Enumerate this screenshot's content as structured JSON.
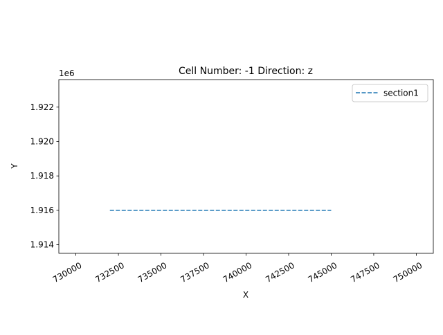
{
  "chart_data": {
    "type": "line",
    "title": "Cell Number: -1 Direction: z",
    "xlabel": "X",
    "ylabel": "Y",
    "y_offset_label": "1e6",
    "xlim": [
      729000,
      751000
    ],
    "ylim": [
      1913500,
      1923600
    ],
    "x_ticks": [
      730000,
      732500,
      735000,
      737500,
      740000,
      742500,
      745000,
      747500,
      750000
    ],
    "x_tick_labels": [
      "730000",
      "732500",
      "735000",
      "737500",
      "740000",
      "742500",
      "745000",
      "747500",
      "750000"
    ],
    "y_ticks": [
      1914000,
      1916000,
      1918000,
      1920000,
      1922000
    ],
    "y_tick_labels": [
      "1.914",
      "1.916",
      "1.918",
      "1.920",
      "1.922"
    ],
    "grid": false,
    "legend_position": "upper-right",
    "series": [
      {
        "name": "section1",
        "color": "#1f77b4",
        "linestyle": "dashed",
        "x": [
          732000,
          745000
        ],
        "y": [
          1916000,
          1916000
        ]
      }
    ]
  }
}
